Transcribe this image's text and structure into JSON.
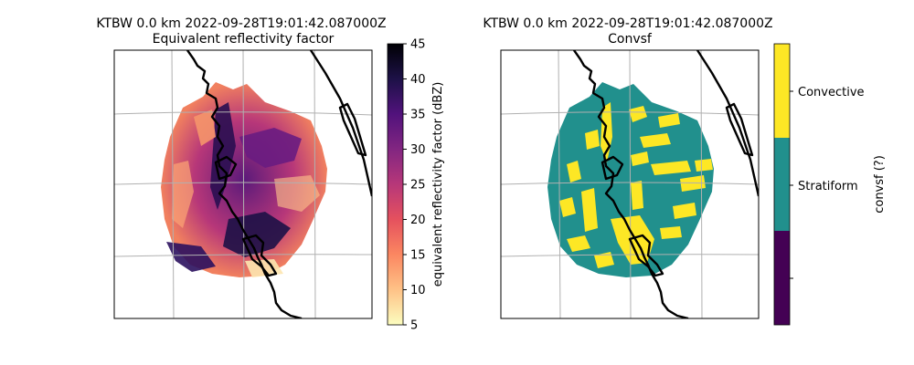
{
  "chart_data": [
    {
      "type": "heatmap",
      "title": "KTBW 0.0 km 2022-09-28T19:01:42.087000Z",
      "subtitle": "Equivalent reflectivity factor",
      "field": "equivalent reflectivity factor",
      "colorbar": {
        "label": "equivalent reflectivity factor (dBZ)",
        "range": [
          5,
          45
        ],
        "ticks": [
          "5",
          "10",
          "15",
          "20",
          "25",
          "30",
          "35",
          "40",
          "45"
        ],
        "colormap": [
          "#fcfdbf",
          "#fec287",
          "#fb8761",
          "#e5515e",
          "#b73779",
          "#822681",
          "#51127c",
          "#1d1147",
          "#000004"
        ]
      },
      "grid": true,
      "map": "radar sweep over Florida west coast (Tampa Bay) with coastlines"
    },
    {
      "type": "heatmap",
      "title": "KTBW 0.0 km 2022-09-28T19:01:42.087000Z",
      "subtitle": "Convsf",
      "field": "convsf",
      "colorbar": {
        "label": "convsf (?)",
        "categories": [
          "",
          "Stratiform",
          "Convective"
        ],
        "colors": [
          "#440154",
          "#21908d",
          "#fde725"
        ]
      },
      "grid": true,
      "map": "radar sweep over Florida west coast (Tampa Bay) with coastlines"
    }
  ]
}
